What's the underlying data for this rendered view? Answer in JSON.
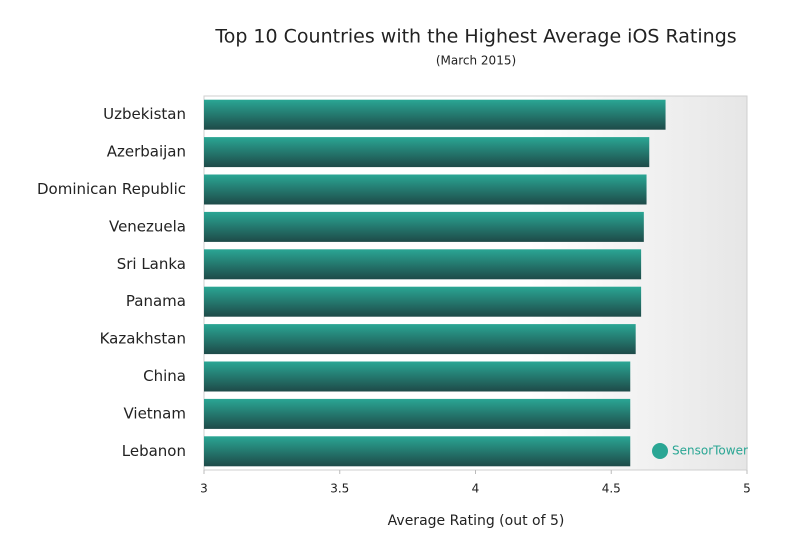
{
  "chart_data": {
    "type": "bar",
    "orientation": "horizontal",
    "title": "Top 10 Countries with the Highest Average iOS Ratings",
    "subtitle": "(March 2015)",
    "x_label": "Average Rating (out of 5)",
    "watermark": "SensorTower",
    "categories": [
      "Uzbekistan",
      "Azerbaijan",
      "Dominican Republic",
      "Venezuela",
      "Sri Lanka",
      "Panama",
      "Kazakhstan",
      "China",
      "Vietnam",
      "Lebanon"
    ],
    "values": [
      4.7,
      4.64,
      4.63,
      4.62,
      4.61,
      4.61,
      4.59,
      4.57,
      4.57,
      4.57
    ],
    "color": "#2aa694",
    "xlim": [
      3,
      5
    ],
    "xticks": [
      3,
      3.5,
      4,
      4.5,
      5
    ]
  }
}
